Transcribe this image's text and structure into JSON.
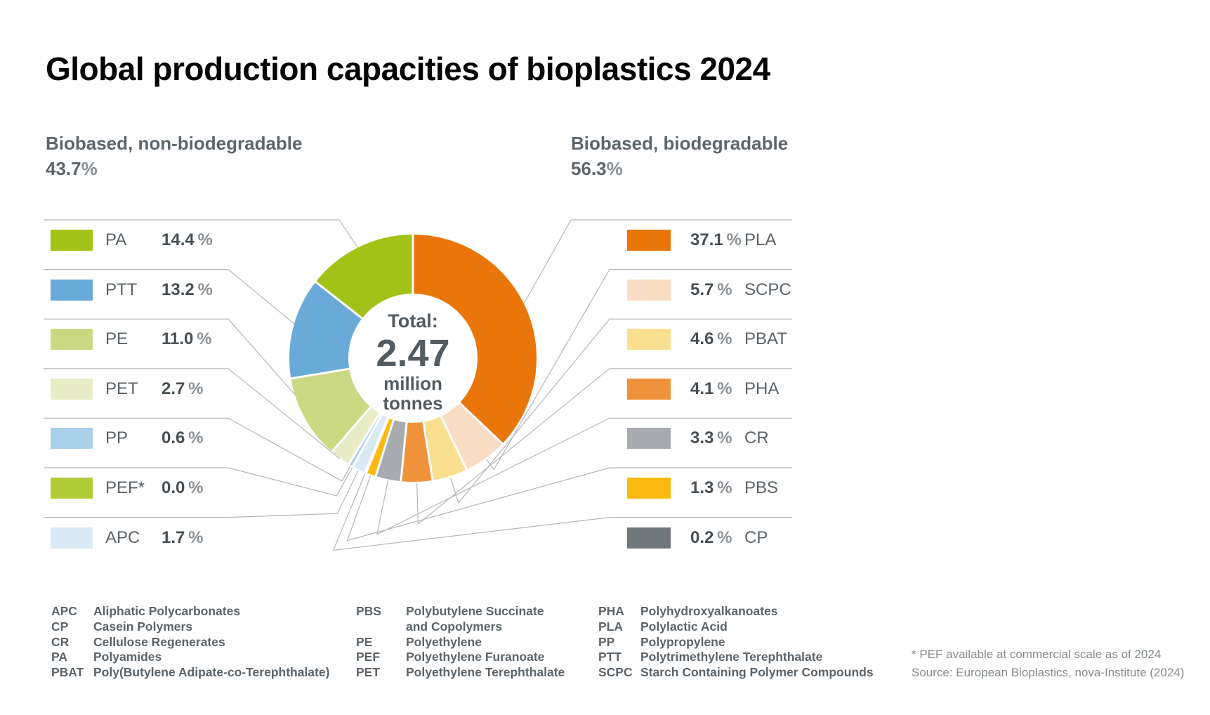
{
  "title": "Global production capacities of bioplastics 2024",
  "percent_sign": "%",
  "groups": {
    "non_biodegradable": {
      "label": "Biobased, non-biodegradable",
      "pct_text": "43.7"
    },
    "biodegradable": {
      "label": "Biobased, biodegradable",
      "pct_text": "56.3"
    }
  },
  "donut_center": {
    "label": "Total:",
    "value": "2.47",
    "unit_line1": "million",
    "unit_line2": "tonnes"
  },
  "chart_data": {
    "type": "pie",
    "subtype": "donut",
    "title": "Global production capacities of bioplastics 2024",
    "total_label": "Total: 2.47 million tonnes",
    "start_angle_deg": 0,
    "direction": "clockwise",
    "groups": [
      {
        "name": "Biobased, biodegradable",
        "percent": 56.3,
        "slices": [
          {
            "code": "PLA",
            "legend_code": "PLA",
            "percent": 37.1,
            "pct_text": "37.1",
            "color": "#ea7508"
          },
          {
            "code": "SCPC",
            "legend_code": "SCPC",
            "percent": 5.7,
            "pct_text": "5.7",
            "color": "#f8dcc3"
          },
          {
            "code": "PBAT",
            "legend_code": "PBAT",
            "percent": 4.6,
            "pct_text": "4.6",
            "color": "#fbdf90"
          },
          {
            "code": "PHA",
            "legend_code": "PHA",
            "percent": 4.1,
            "pct_text": "4.1",
            "color": "#f0923c"
          },
          {
            "code": "CR",
            "legend_code": "CR",
            "percent": 3.3,
            "pct_text": "3.3",
            "color": "#a8acb0"
          },
          {
            "code": "PBS",
            "legend_code": "PBS",
            "percent": 1.3,
            "pct_text": "1.3",
            "color": "#fcba10"
          },
          {
            "code": "CP",
            "legend_code": "CP",
            "percent": 0.2,
            "pct_text": "0.2",
            "color": "#70777b"
          }
        ]
      },
      {
        "name": "Biobased, non-biodegradable",
        "percent": 43.7,
        "slices": [
          {
            "code": "PA",
            "legend_code": "PA",
            "percent": 14.4,
            "pct_text": "14.4",
            "color": "#a3c217"
          },
          {
            "code": "PTT",
            "legend_code": "PTT",
            "percent": 13.2,
            "pct_text": "13.2",
            "color": "#6aaad8"
          },
          {
            "code": "PE",
            "legend_code": "PE",
            "percent": 11.0,
            "pct_text": "11.0",
            "color": "#cbd983"
          },
          {
            "code": "PET",
            "legend_code": "PET",
            "percent": 2.7,
            "pct_text": "2.7",
            "color": "#e8edc8"
          },
          {
            "code": "PP",
            "legend_code": "PP",
            "percent": 0.6,
            "pct_text": "0.6",
            "color": "#abd0e9"
          },
          {
            "code": "PEF",
            "legend_code": "PEF*",
            "percent": 0.0,
            "pct_text": "0.0",
            "color": "#b2cc37"
          },
          {
            "code": "APC",
            "legend_code": "APC",
            "percent": 1.7,
            "pct_text": "1.7",
            "color": "#d9e9f5"
          }
        ]
      }
    ]
  },
  "abbreviations": {
    "col1": [
      {
        "abbr": "APC",
        "name": "Aliphatic Polycarbonates"
      },
      {
        "abbr": "CP",
        "name": "Casein Polymers"
      },
      {
        "abbr": "CR",
        "name": "Cellulose Regenerates"
      },
      {
        "abbr": "PA",
        "name": "Polyamides"
      },
      {
        "abbr": "PBAT",
        "name": "Poly(Butylene Adipate-co-Terephthalate)"
      }
    ],
    "col2": [
      {
        "abbr": "PBS",
        "name": "Polybutylene Succinate\nand Copolymers"
      },
      {
        "abbr": "PE",
        "name": "Polyethylene"
      },
      {
        "abbr": "PEF",
        "name": "Polyethylene Furanoate"
      },
      {
        "abbr": "PET",
        "name": "Polyethylene Terephthalate"
      }
    ],
    "col3": [
      {
        "abbr": "PHA",
        "name": "Polyhydroxyalkanoates"
      },
      {
        "abbr": "PLA",
        "name": "Polylactic Acid"
      },
      {
        "abbr": "PP",
        "name": "Polypropylene"
      },
      {
        "abbr": "PTT",
        "name": "Polytrimethylene Terephthalate"
      },
      {
        "abbr": "SCPC",
        "name": "Starch Containing Polymer Compounds"
      }
    ]
  },
  "footnotes": [
    "* PEF available at commercial scale as of 2024",
    "Source: European Bioplastics, nova-Institute (2024)"
  ]
}
